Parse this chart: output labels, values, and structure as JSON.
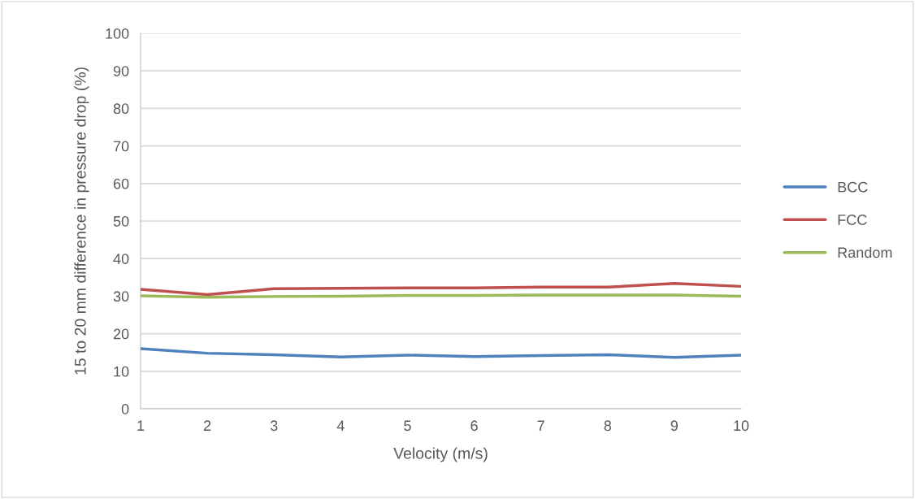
{
  "chart_data": {
    "type": "line",
    "xlabel": "Velocity (m/s)",
    "ylabel": "15 to 20 mm difference in pressure drop (%)",
    "x": [
      1,
      2,
      3,
      4,
      5,
      6,
      7,
      8,
      9,
      10
    ],
    "series": [
      {
        "name": "BCC",
        "color": "#4f81bd",
        "values": [
          16,
          14.8,
          14.4,
          13.8,
          14.3,
          13.9,
          14.2,
          14.4,
          13.7,
          14.3
        ]
      },
      {
        "name": "FCC",
        "color": "#c0504d",
        "values": [
          31.8,
          30.4,
          32.0,
          32.1,
          32.2,
          32.2,
          32.4,
          32.4,
          33.4,
          32.6
        ]
      },
      {
        "name": "Random",
        "color": "#9bbb59",
        "values": [
          30.1,
          29.7,
          29.9,
          30.0,
          30.2,
          30.2,
          30.3,
          30.3,
          30.3,
          30.0
        ]
      }
    ],
    "xlim": [
      1,
      10
    ],
    "xticks": [
      1,
      2,
      3,
      4,
      5,
      6,
      7,
      8,
      9,
      10
    ],
    "ylim": [
      0,
      100
    ],
    "yticks": [
      0,
      10,
      20,
      30,
      40,
      50,
      60,
      70,
      80,
      90,
      100
    ],
    "grid": "y",
    "legend": "right",
    "marker": "none",
    "line_style": "solid"
  }
}
